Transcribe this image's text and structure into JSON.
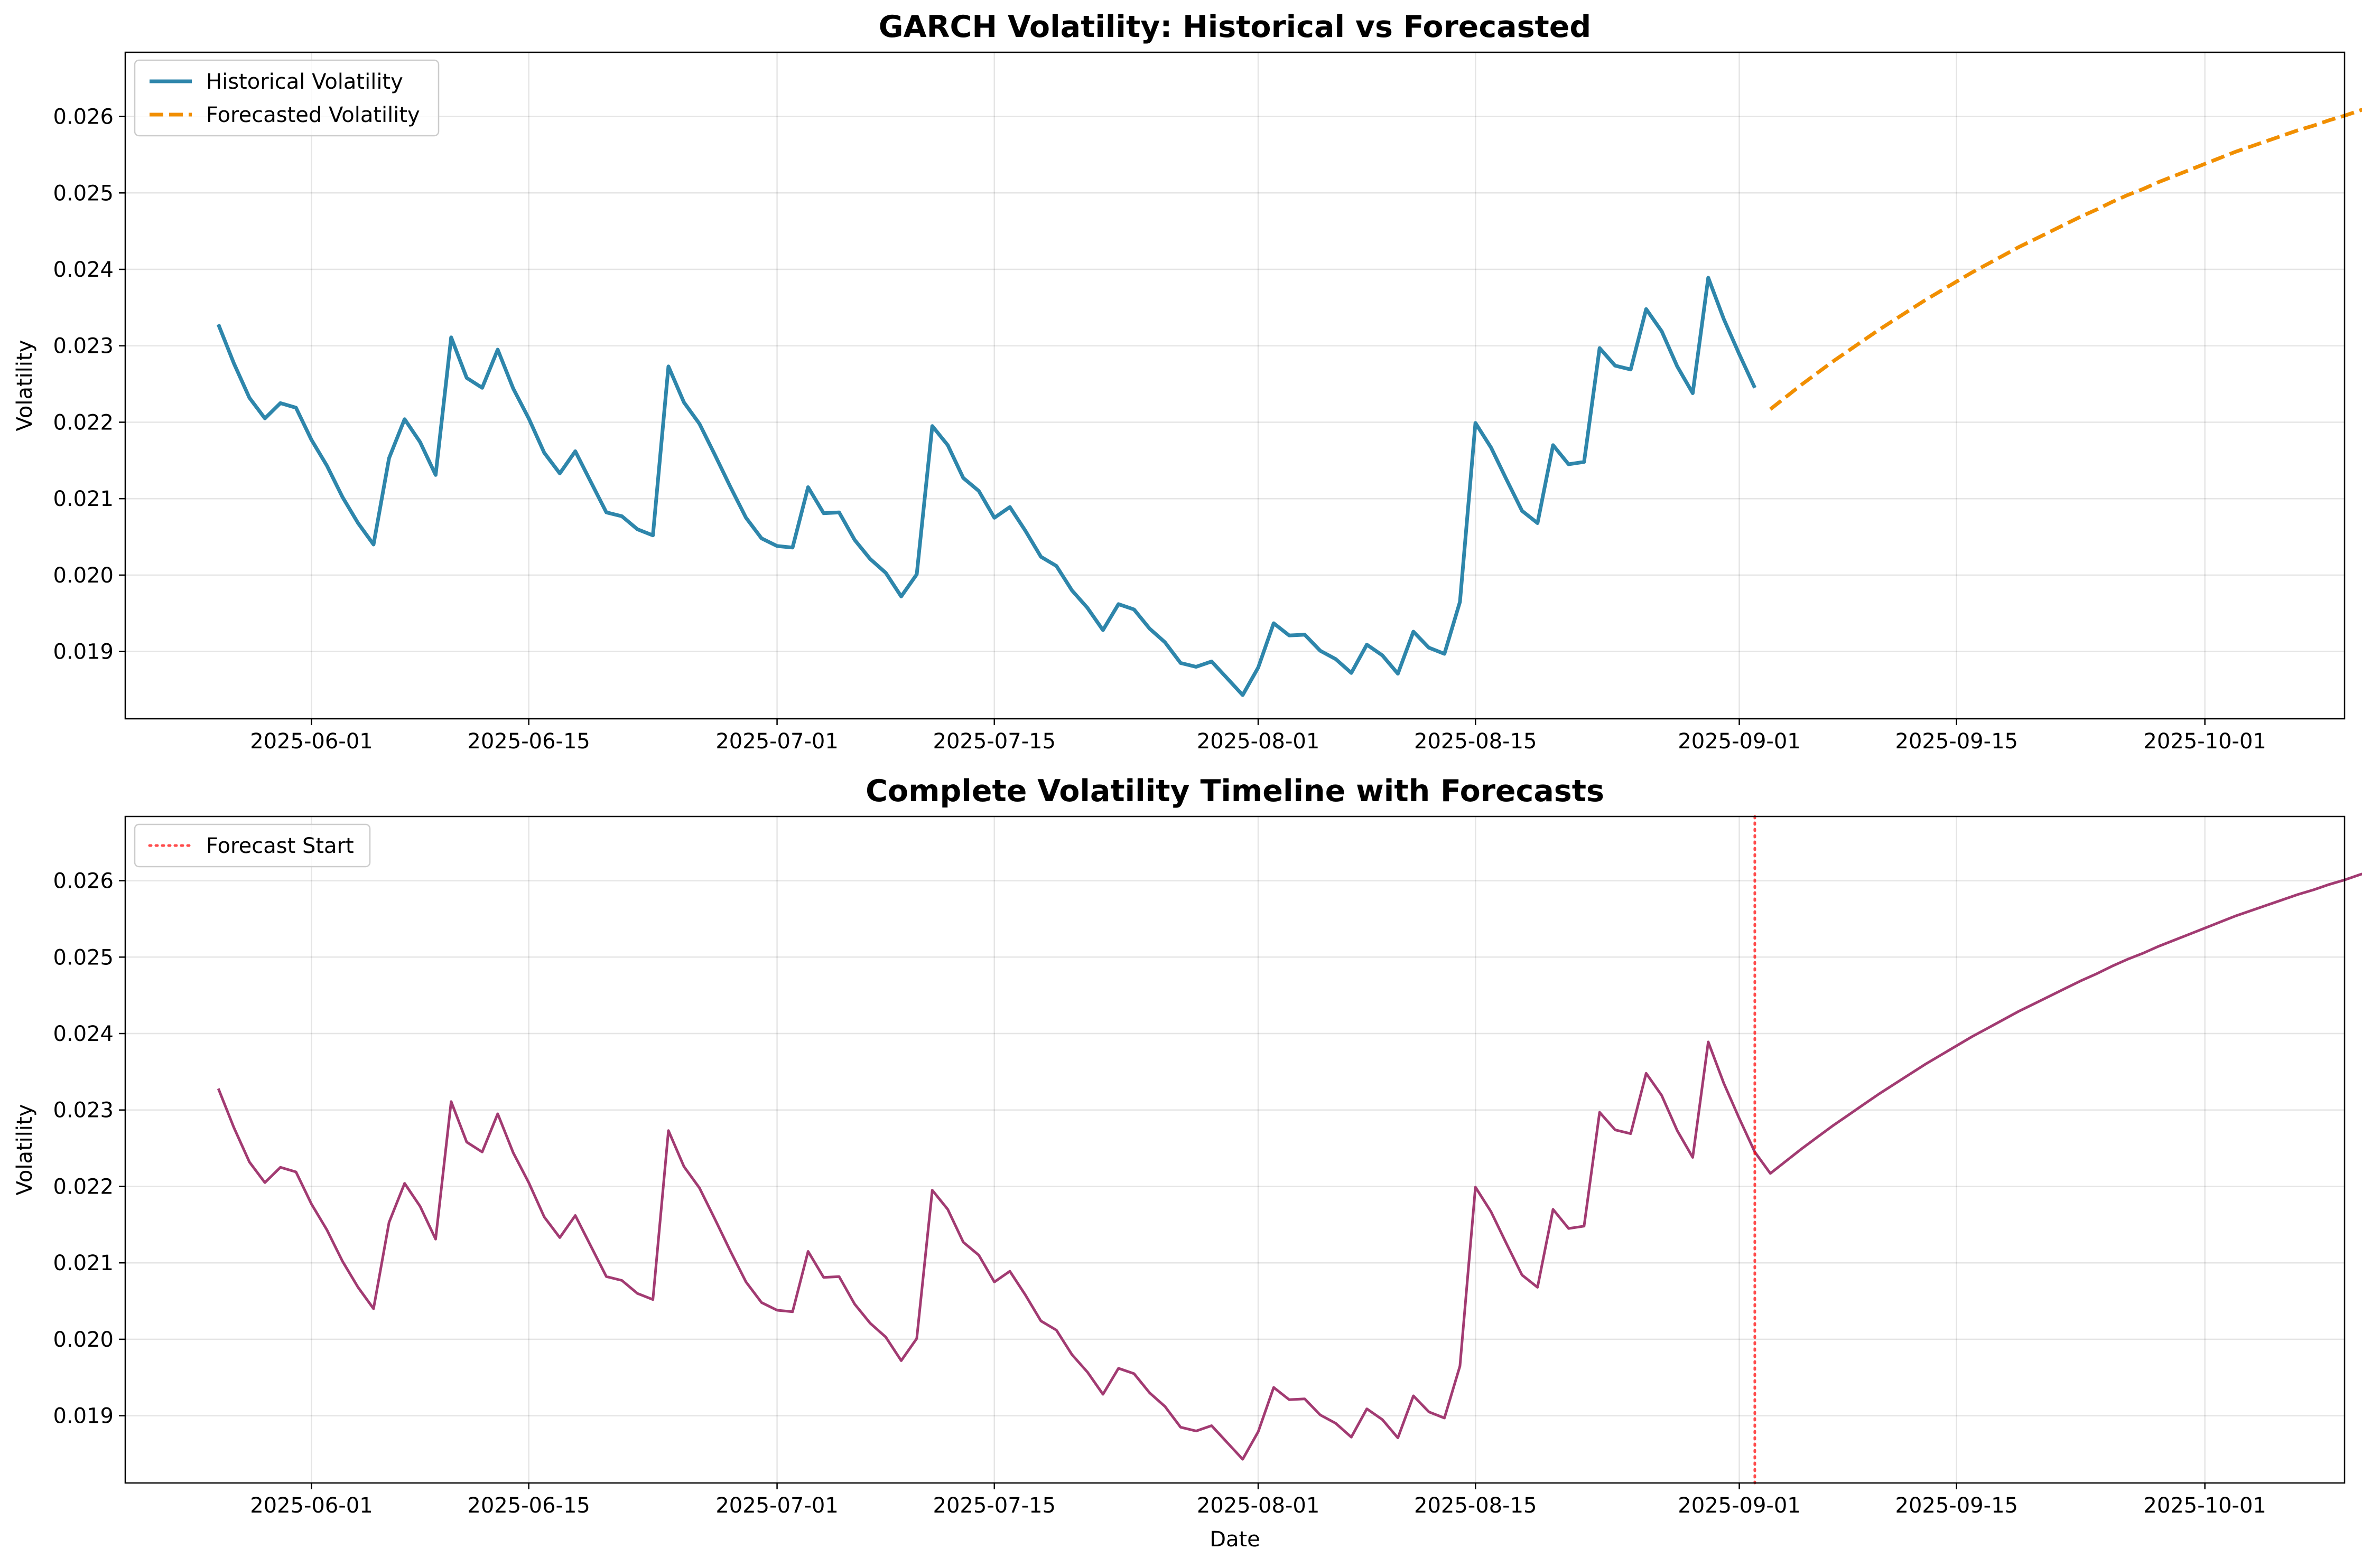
{
  "chart_data": [
    {
      "type": "line",
      "title": "GARCH Volatility: Historical vs Forecasted",
      "xlabel": "",
      "ylabel": "Volatility",
      "x_type": "date",
      "xlim": [
        "2025-05-20",
        "2025-10-10"
      ],
      "ylim": [
        0.01812,
        0.02684
      ],
      "yticks": [
        "0.019",
        "0.020",
        "0.021",
        "0.022",
        "0.023",
        "0.024",
        "0.025",
        "0.026"
      ],
      "xticks": [
        "2025-06-01",
        "2025-06-15",
        "2025-07-01",
        "2025-07-15",
        "2025-08-01",
        "2025-08-15",
        "2025-09-01",
        "2025-09-15",
        "2025-10-01"
      ],
      "grid": true,
      "legend_position": "upper left",
      "series": [
        {
          "name": "Historical Volatility",
          "color": "#2E86AB",
          "style": "solid",
          "start_date": "2025-05-26",
          "values": [
            0.02328,
            0.02277,
            0.02232,
            0.02205,
            0.02225,
            0.02219,
            0.02177,
            0.02143,
            0.02102,
            0.02068,
            0.0204,
            0.02153,
            0.02204,
            0.02174,
            0.02131,
            0.02311,
            0.02258,
            0.02245,
            0.02295,
            0.02244,
            0.02205,
            0.0216,
            0.02133,
            0.02162,
            0.02122,
            0.02082,
            0.02077,
            0.0206,
            0.02052,
            0.02273,
            0.02226,
            0.02198,
            0.02157,
            0.02115,
            0.02075,
            0.02048,
            0.02038,
            0.02036,
            0.02115,
            0.02081,
            0.02082,
            0.02046,
            0.02021,
            0.02003,
            0.01972,
            0.02001,
            0.02195,
            0.0217,
            0.02127,
            0.0211,
            0.02075,
            0.02089,
            0.02058,
            0.02024,
            0.02012,
            0.0198,
            0.01957,
            0.01928,
            0.01962,
            0.01955,
            0.0193,
            0.01912,
            0.01885,
            0.0188,
            0.01887,
            0.01865,
            0.01843,
            0.01879,
            0.01937,
            0.01921,
            0.01922,
            0.01901,
            0.0189,
            0.01872,
            0.01909,
            0.01895,
            0.01871,
            0.01926,
            0.01905,
            0.01897,
            0.01965,
            0.02199,
            0.02167,
            0.02125,
            0.02084,
            0.02068,
            0.0217,
            0.02145,
            0.02148,
            0.02297,
            0.02274,
            0.02269,
            0.02348,
            0.02319,
            0.02273,
            0.02238,
            0.02389,
            0.02335,
            0.02289,
            0.02245
          ]
        },
        {
          "name": "Forecasted Volatility",
          "color": "#F18F01",
          "style": "dashed",
          "start_date": "2025-09-03",
          "values": [
            0.02217,
            0.02233,
            0.02249,
            0.02264,
            0.02279,
            0.02293,
            0.02307,
            0.02321,
            0.02334,
            0.02347,
            0.0236,
            0.02372,
            0.02384,
            0.02396,
            0.02407,
            0.02418,
            0.02429,
            0.02439,
            0.02449,
            0.02459,
            0.02469,
            0.02478,
            0.02488,
            0.02497,
            0.02505,
            0.02514,
            0.02522,
            0.0253,
            0.02538,
            0.02546,
            0.02554,
            0.02561,
            0.02568,
            0.02575,
            0.02582,
            0.02588,
            0.02595,
            0.02601,
            0.02608,
            0.02614,
            0.0262
          ]
        }
      ]
    },
    {
      "type": "line",
      "title": "Complete Volatility Timeline with Forecasts",
      "xlabel": "Date",
      "ylabel": "Volatility",
      "x_type": "date",
      "xlim": [
        "2025-05-20",
        "2025-10-10"
      ],
      "ylim": [
        0.01812,
        0.02684
      ],
      "yticks": [
        "0.019",
        "0.020",
        "0.021",
        "0.022",
        "0.023",
        "0.024",
        "0.025",
        "0.026"
      ],
      "xticks": [
        "2025-06-01",
        "2025-06-15",
        "2025-07-01",
        "2025-07-15",
        "2025-08-01",
        "2025-08-15",
        "2025-09-01",
        "2025-09-15",
        "2025-10-01"
      ],
      "grid": true,
      "legend_position": "upper left",
      "vline": {
        "name": "Forecast Start",
        "date": "2025-09-02",
        "color": "#FF0000",
        "style": "dotted"
      },
      "series": [
        {
          "color": "#A23B72",
          "style": "solid",
          "combined": [
            "Historical Volatility",
            "Forecasted Volatility"
          ]
        }
      ]
    }
  ]
}
